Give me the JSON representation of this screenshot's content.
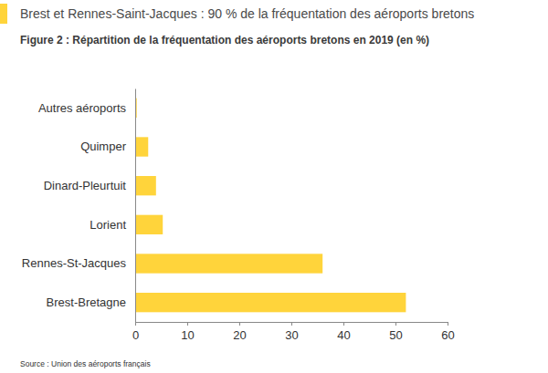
{
  "chart_data": {
    "type": "bar",
    "orientation": "horizontal",
    "title": "Brest et Rennes-Saint-Jacques : 90 % de la fréquentation des aéroports bretons",
    "subtitle": "Figure 2 : Répartition de la fréquentation des aéroports bretons en 2019 (en %)",
    "source": "Source : Union des aéroports français",
    "categories": [
      "Autres aéroports",
      "Quimper",
      "Dinard-Pleurtuit",
      "Lorient",
      "Rennes-St-Jacques",
      "Brest-Bretagne"
    ],
    "values": [
      0.3,
      2.5,
      4,
      5.3,
      36,
      52
    ],
    "color": "#ffd43b",
    "xlim": [
      0,
      60
    ],
    "xticks": [
      0,
      10,
      20,
      30,
      40,
      50,
      60
    ],
    "grid": false
  }
}
